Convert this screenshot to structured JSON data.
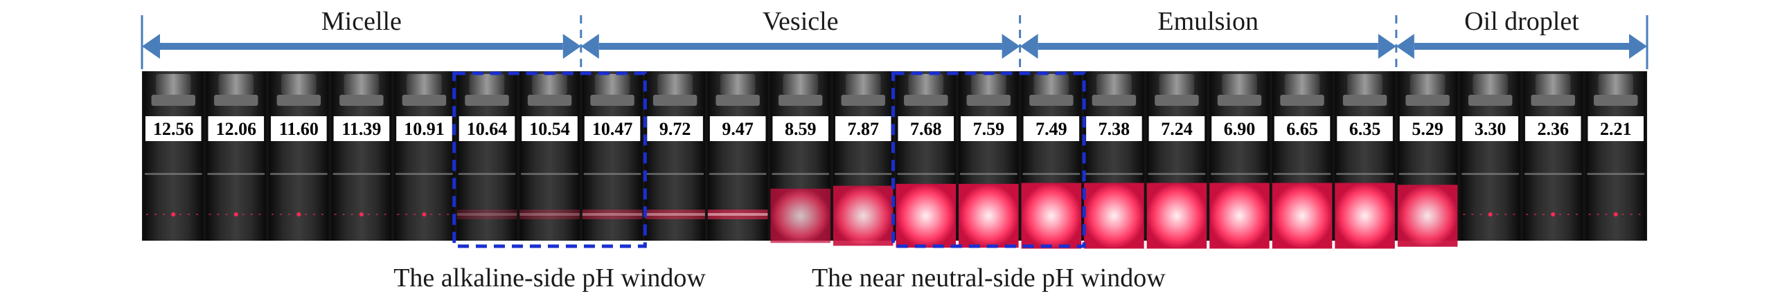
{
  "phases": [
    {
      "name": "Micelle",
      "from": 0,
      "to": 7
    },
    {
      "name": "Vesicle",
      "from": 7,
      "to": 14
    },
    {
      "name": "Emulsion",
      "from": 14,
      "to": 20
    },
    {
      "name": "Oil droplet",
      "from": 20,
      "to": 24
    }
  ],
  "vials": [
    {
      "ph": "12.56",
      "glow": 0.05
    },
    {
      "ph": "12.06",
      "glow": 0.05
    },
    {
      "ph": "11.60",
      "glow": 0.05
    },
    {
      "ph": "11.39",
      "glow": 0.05
    },
    {
      "ph": "10.91",
      "glow": 0.05
    },
    {
      "ph": "10.64",
      "glow": 0.22
    },
    {
      "ph": "10.54",
      "glow": 0.28
    },
    {
      "ph": "10.47",
      "glow": 0.38
    },
    {
      "ph": "9.72",
      "glow": 0.45
    },
    {
      "ph": "9.47",
      "glow": 0.55
    },
    {
      "ph": "8.59",
      "glow": 0.7
    },
    {
      "ph": "7.87",
      "glow": 0.85
    },
    {
      "ph": "7.68",
      "glow": 0.95
    },
    {
      "ph": "7.59",
      "glow": 0.95
    },
    {
      "ph": "7.49",
      "glow": 1.0
    },
    {
      "ph": "7.38",
      "glow": 1.0
    },
    {
      "ph": "7.24",
      "glow": 1.0
    },
    {
      "ph": "6.90",
      "glow": 1.0
    },
    {
      "ph": "6.65",
      "glow": 1.0
    },
    {
      "ph": "6.35",
      "glow": 1.0
    },
    {
      "ph": "5.29",
      "glow": 0.9
    },
    {
      "ph": "3.30",
      "glow": 0.05
    },
    {
      "ph": "2.36",
      "glow": 0.05
    },
    {
      "ph": "2.21",
      "glow": 0.05
    }
  ],
  "windows": [
    {
      "caption": "The alkaline-side pH window",
      "from": 5,
      "to": 8
    },
    {
      "caption": "The near neutral-side pH window",
      "from": 12,
      "to": 15
    }
  ],
  "colors": {
    "arrow": "#4a7ebb",
    "window_box": "#1a2fd0",
    "laser": "#ff2a55",
    "label_bg": "#ffffff",
    "vial_bg": "#141414"
  }
}
